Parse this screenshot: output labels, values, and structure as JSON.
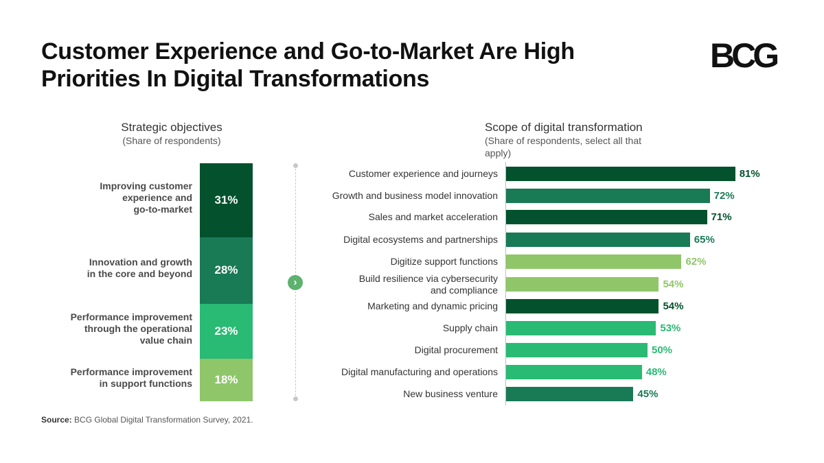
{
  "header": {
    "title": "Customer Experience and Go-to-Market Are High Priorities In Digital Transformations",
    "logo": "BCG"
  },
  "left_panel": {
    "title": "Strategic objectives",
    "subtitle": "(Share of respondents)"
  },
  "right_panel": {
    "title": "Scope of digital transformation",
    "subtitle": "(Share of respondents, select all that apply)"
  },
  "colors": {
    "dark_green": "#03522d",
    "mid_green": "#197a56",
    "bright_green": "#29ba74",
    "light_green": "#8fc66a"
  },
  "chart_data": [
    {
      "type": "bar",
      "orientation": "stacked-vertical",
      "title": "Strategic objectives",
      "categories": [
        "Improving customer experience and go-to-market",
        "Innovation and growth in the core and beyond",
        "Performance improvement through the operational value chain",
        "Performance improvement in support functions"
      ],
      "values": [
        31,
        28,
        23,
        18
      ],
      "value_labels": [
        "31%",
        "28%",
        "23%",
        "18%"
      ],
      "colors": [
        "#03522d",
        "#197a56",
        "#29ba74",
        "#8fc66a"
      ],
      "unit": "%"
    },
    {
      "type": "bar",
      "orientation": "horizontal",
      "title": "Scope of digital transformation",
      "categories": [
        "Customer experience and journeys",
        "Growth and business model innovation",
        "Sales and market acceleration",
        "Digital ecosystems and partnerships",
        "Digitize support functions",
        "Build resilience via cybersecurity and compliance",
        "Marketing and dynamic pricing",
        "Supply chain",
        "Digital procurement",
        "Digital manufacturing and operations",
        "New business venture"
      ],
      "label_lines": [
        [
          "Customer experience and journeys"
        ],
        [
          "Growth and business model innovation"
        ],
        [
          "Sales and market acceleration"
        ],
        [
          "Digital ecosystems and partnerships"
        ],
        [
          "Digitize support functions"
        ],
        [
          "Build resilience via cybersecurity",
          "and compliance"
        ],
        [
          "Marketing and dynamic pricing"
        ],
        [
          "Supply chain"
        ],
        [
          "Digital procurement"
        ],
        [
          "Digital manufacturing and operations"
        ],
        [
          "New business venture"
        ]
      ],
      "values": [
        81,
        72,
        71,
        65,
        62,
        54,
        54,
        53,
        50,
        48,
        45
      ],
      "value_labels": [
        "81%",
        "72%",
        "71%",
        "65%",
        "62%",
        "54%",
        "54%",
        "53%",
        "50%",
        "48%",
        "45%"
      ],
      "colors": [
        "#03522d",
        "#197a56",
        "#03522d",
        "#197a56",
        "#8fc66a",
        "#8fc66a",
        "#03522d",
        "#29ba74",
        "#29ba74",
        "#29ba74",
        "#197a56"
      ],
      "xlim": [
        0,
        100
      ],
      "unit": "%"
    }
  ],
  "left_labels": [
    [
      "Improving customer",
      "experience and",
      "go-to-market"
    ],
    [
      "Innovation and growth",
      "in the core and beyond"
    ],
    [
      "Performance improvement",
      "through the operational",
      "value chain"
    ],
    [
      "Performance improvement",
      "in support functions"
    ]
  ],
  "navigation": {
    "arrow_icon": "chevron-right-icon",
    "arrow_glyph": "›"
  },
  "footer": {
    "source_label": "Source:",
    "source_text": "BCG Global Digital Transformation Survey, 2021."
  }
}
